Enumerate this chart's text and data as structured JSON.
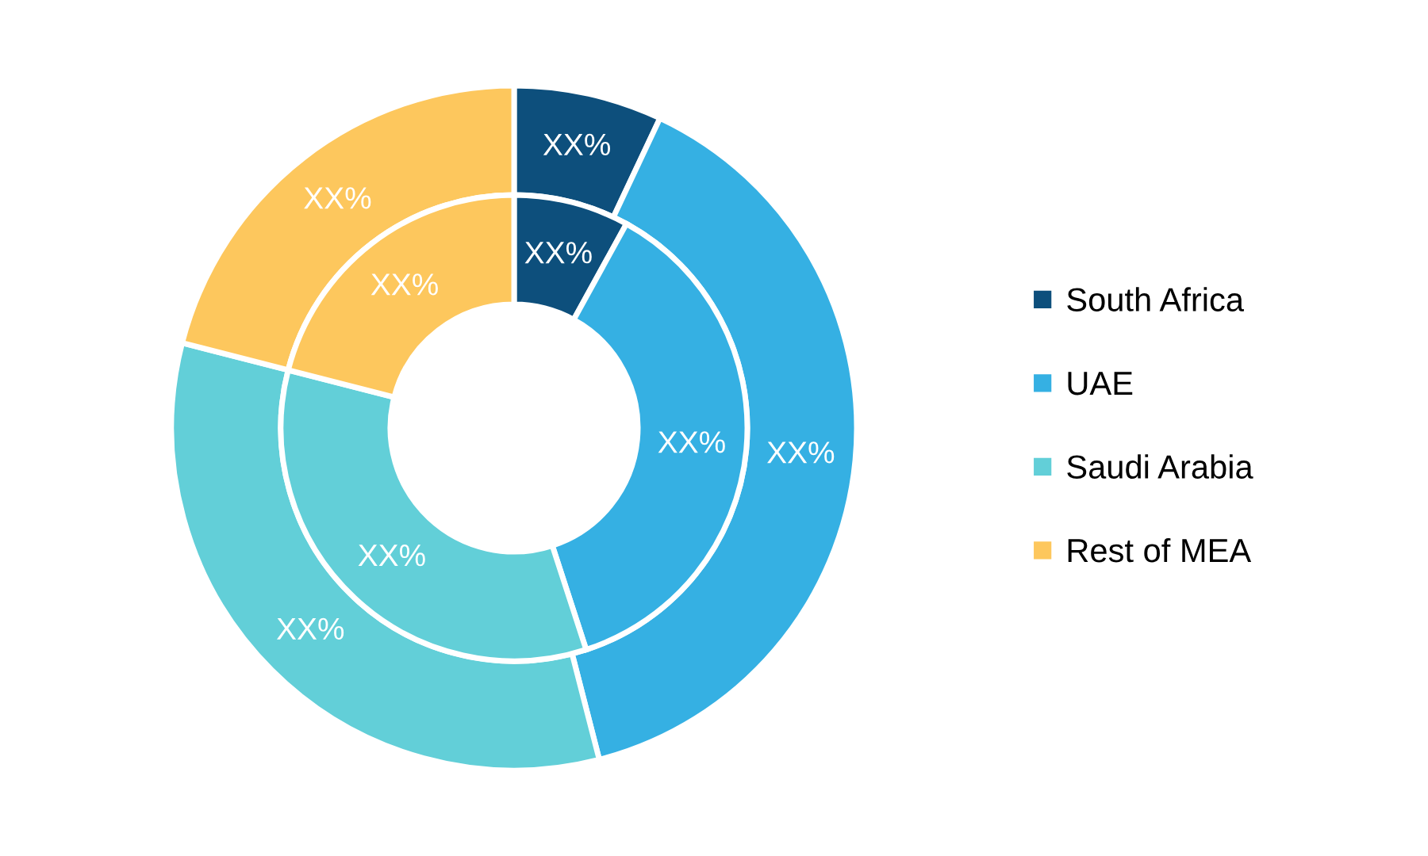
{
  "chart_data": {
    "type": "donut",
    "categories": [
      "South Africa",
      "UAE",
      "Saudi Arabia",
      "Rest of MEA"
    ],
    "colors": [
      "#0d4f7c",
      "#35b0e3",
      "#62cfd8",
      "#fdc75d"
    ],
    "series": [
      {
        "values": [
          7,
          39,
          33,
          21
        ],
        "value_labels": [
          "XX%",
          "XX%",
          "XX%",
          "XX%"
        ]
      },
      {
        "values": [
          8,
          37,
          34,
          21
        ],
        "value_labels": [
          "XX%",
          "XX%",
          "XX%",
          "XX%"
        ]
      }
    ],
    "legend": "right"
  }
}
